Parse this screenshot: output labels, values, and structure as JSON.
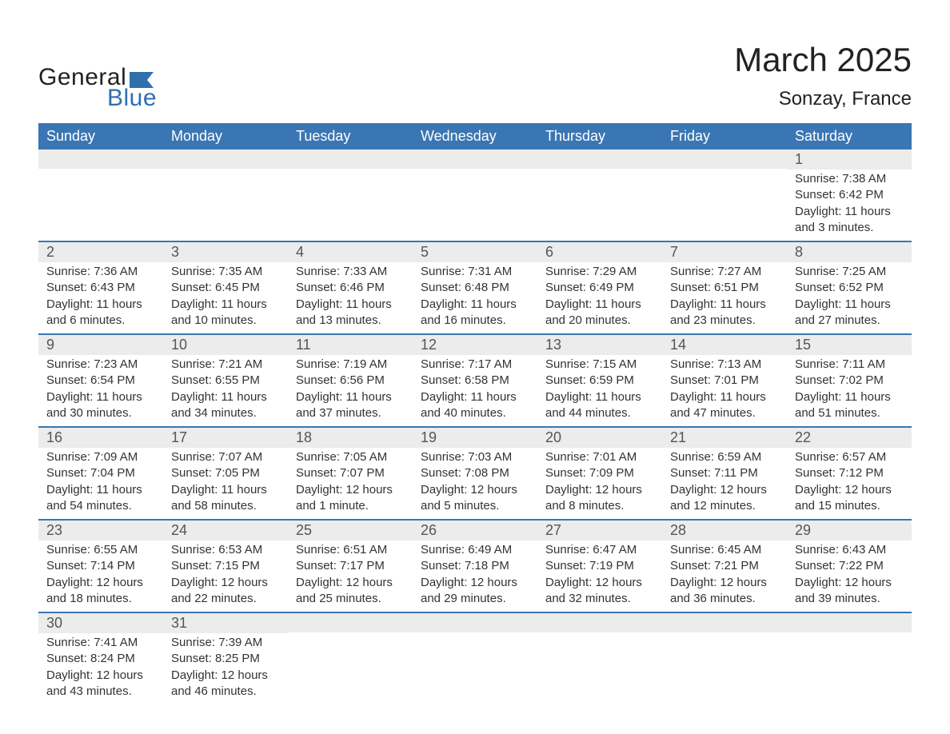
{
  "brand": {
    "word1": "General",
    "word2": "Blue",
    "word1_color": "#222222",
    "word2_color": "#2f6fae",
    "flag_color": "#2f6fae"
  },
  "title": {
    "month": "March 2025",
    "location": "Sonzay, France"
  },
  "style": {
    "header_bg": "#3a76b3",
    "header_text": "#ffffff",
    "daynum_bg": "#ececec",
    "week_sep_color": "#3a76b3",
    "body_text": "#333333",
    "daynum_text": "#555555"
  },
  "day_headers": [
    "Sunday",
    "Monday",
    "Tuesday",
    "Wednesday",
    "Thursday",
    "Friday",
    "Saturday"
  ],
  "weeks": [
    [
      {
        "n": "",
        "sr": "",
        "ss": "",
        "dl": ""
      },
      {
        "n": "",
        "sr": "",
        "ss": "",
        "dl": ""
      },
      {
        "n": "",
        "sr": "",
        "ss": "",
        "dl": ""
      },
      {
        "n": "",
        "sr": "",
        "ss": "",
        "dl": ""
      },
      {
        "n": "",
        "sr": "",
        "ss": "",
        "dl": ""
      },
      {
        "n": "",
        "sr": "",
        "ss": "",
        "dl": ""
      },
      {
        "n": "1",
        "sr": "Sunrise: 7:38 AM",
        "ss": "Sunset: 6:42 PM",
        "dl": "Daylight: 11 hours and 3 minutes."
      }
    ],
    [
      {
        "n": "2",
        "sr": "Sunrise: 7:36 AM",
        "ss": "Sunset: 6:43 PM",
        "dl": "Daylight: 11 hours and 6 minutes."
      },
      {
        "n": "3",
        "sr": "Sunrise: 7:35 AM",
        "ss": "Sunset: 6:45 PM",
        "dl": "Daylight: 11 hours and 10 minutes."
      },
      {
        "n": "4",
        "sr": "Sunrise: 7:33 AM",
        "ss": "Sunset: 6:46 PM",
        "dl": "Daylight: 11 hours and 13 minutes."
      },
      {
        "n": "5",
        "sr": "Sunrise: 7:31 AM",
        "ss": "Sunset: 6:48 PM",
        "dl": "Daylight: 11 hours and 16 minutes."
      },
      {
        "n": "6",
        "sr": "Sunrise: 7:29 AM",
        "ss": "Sunset: 6:49 PM",
        "dl": "Daylight: 11 hours and 20 minutes."
      },
      {
        "n": "7",
        "sr": "Sunrise: 7:27 AM",
        "ss": "Sunset: 6:51 PM",
        "dl": "Daylight: 11 hours and 23 minutes."
      },
      {
        "n": "8",
        "sr": "Sunrise: 7:25 AM",
        "ss": "Sunset: 6:52 PM",
        "dl": "Daylight: 11 hours and 27 minutes."
      }
    ],
    [
      {
        "n": "9",
        "sr": "Sunrise: 7:23 AM",
        "ss": "Sunset: 6:54 PM",
        "dl": "Daylight: 11 hours and 30 minutes."
      },
      {
        "n": "10",
        "sr": "Sunrise: 7:21 AM",
        "ss": "Sunset: 6:55 PM",
        "dl": "Daylight: 11 hours and 34 minutes."
      },
      {
        "n": "11",
        "sr": "Sunrise: 7:19 AM",
        "ss": "Sunset: 6:56 PM",
        "dl": "Daylight: 11 hours and 37 minutes."
      },
      {
        "n": "12",
        "sr": "Sunrise: 7:17 AM",
        "ss": "Sunset: 6:58 PM",
        "dl": "Daylight: 11 hours and 40 minutes."
      },
      {
        "n": "13",
        "sr": "Sunrise: 7:15 AM",
        "ss": "Sunset: 6:59 PM",
        "dl": "Daylight: 11 hours and 44 minutes."
      },
      {
        "n": "14",
        "sr": "Sunrise: 7:13 AM",
        "ss": "Sunset: 7:01 PM",
        "dl": "Daylight: 11 hours and 47 minutes."
      },
      {
        "n": "15",
        "sr": "Sunrise: 7:11 AM",
        "ss": "Sunset: 7:02 PM",
        "dl": "Daylight: 11 hours and 51 minutes."
      }
    ],
    [
      {
        "n": "16",
        "sr": "Sunrise: 7:09 AM",
        "ss": "Sunset: 7:04 PM",
        "dl": "Daylight: 11 hours and 54 minutes."
      },
      {
        "n": "17",
        "sr": "Sunrise: 7:07 AM",
        "ss": "Sunset: 7:05 PM",
        "dl": "Daylight: 11 hours and 58 minutes."
      },
      {
        "n": "18",
        "sr": "Sunrise: 7:05 AM",
        "ss": "Sunset: 7:07 PM",
        "dl": "Daylight: 12 hours and 1 minute."
      },
      {
        "n": "19",
        "sr": "Sunrise: 7:03 AM",
        "ss": "Sunset: 7:08 PM",
        "dl": "Daylight: 12 hours and 5 minutes."
      },
      {
        "n": "20",
        "sr": "Sunrise: 7:01 AM",
        "ss": "Sunset: 7:09 PM",
        "dl": "Daylight: 12 hours and 8 minutes."
      },
      {
        "n": "21",
        "sr": "Sunrise: 6:59 AM",
        "ss": "Sunset: 7:11 PM",
        "dl": "Daylight: 12 hours and 12 minutes."
      },
      {
        "n": "22",
        "sr": "Sunrise: 6:57 AM",
        "ss": "Sunset: 7:12 PM",
        "dl": "Daylight: 12 hours and 15 minutes."
      }
    ],
    [
      {
        "n": "23",
        "sr": "Sunrise: 6:55 AM",
        "ss": "Sunset: 7:14 PM",
        "dl": "Daylight: 12 hours and 18 minutes."
      },
      {
        "n": "24",
        "sr": "Sunrise: 6:53 AM",
        "ss": "Sunset: 7:15 PM",
        "dl": "Daylight: 12 hours and 22 minutes."
      },
      {
        "n": "25",
        "sr": "Sunrise: 6:51 AM",
        "ss": "Sunset: 7:17 PM",
        "dl": "Daylight: 12 hours and 25 minutes."
      },
      {
        "n": "26",
        "sr": "Sunrise: 6:49 AM",
        "ss": "Sunset: 7:18 PM",
        "dl": "Daylight: 12 hours and 29 minutes."
      },
      {
        "n": "27",
        "sr": "Sunrise: 6:47 AM",
        "ss": "Sunset: 7:19 PM",
        "dl": "Daylight: 12 hours and 32 minutes."
      },
      {
        "n": "28",
        "sr": "Sunrise: 6:45 AM",
        "ss": "Sunset: 7:21 PM",
        "dl": "Daylight: 12 hours and 36 minutes."
      },
      {
        "n": "29",
        "sr": "Sunrise: 6:43 AM",
        "ss": "Sunset: 7:22 PM",
        "dl": "Daylight: 12 hours and 39 minutes."
      }
    ],
    [
      {
        "n": "30",
        "sr": "Sunrise: 7:41 AM",
        "ss": "Sunset: 8:24 PM",
        "dl": "Daylight: 12 hours and 43 minutes."
      },
      {
        "n": "31",
        "sr": "Sunrise: 7:39 AM",
        "ss": "Sunset: 8:25 PM",
        "dl": "Daylight: 12 hours and 46 minutes."
      },
      {
        "n": "",
        "sr": "",
        "ss": "",
        "dl": ""
      },
      {
        "n": "",
        "sr": "",
        "ss": "",
        "dl": ""
      },
      {
        "n": "",
        "sr": "",
        "ss": "",
        "dl": ""
      },
      {
        "n": "",
        "sr": "",
        "ss": "",
        "dl": ""
      },
      {
        "n": "",
        "sr": "",
        "ss": "",
        "dl": ""
      }
    ]
  ]
}
